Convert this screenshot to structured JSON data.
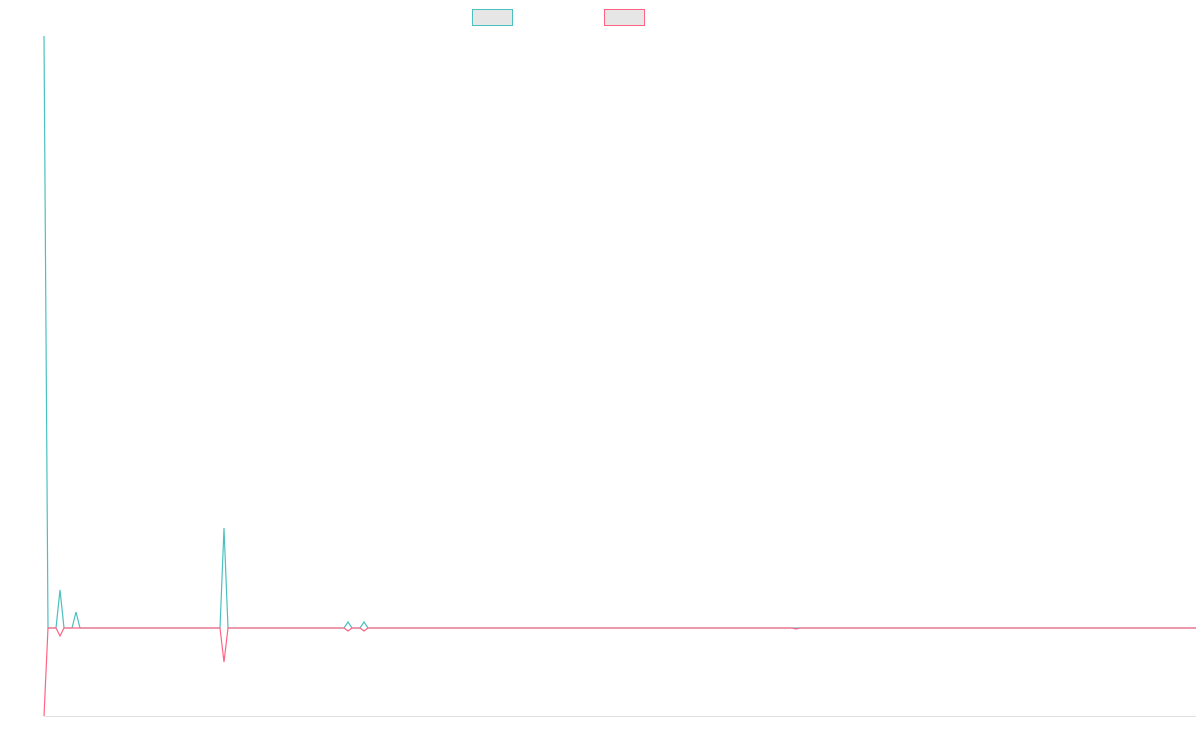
{
  "chart_data": {
    "type": "line",
    "x": [
      0,
      4,
      12,
      16,
      20,
      28,
      32,
      36,
      176,
      180,
      184,
      300,
      304,
      308,
      316,
      320,
      324,
      748,
      752,
      756,
      1152
    ],
    "xlim": [
      0,
      1152
    ],
    "ylim": [
      -88,
      592
    ],
    "series": [
      {
        "color": "#4bc0c0",
        "values": [
          592,
          0,
          0,
          38,
          0,
          0,
          16,
          0,
          0,
          100,
          0,
          0,
          6,
          0,
          0,
          6,
          0,
          0,
          0,
          0,
          0
        ]
      },
      {
        "color": "#ff6384",
        "values": [
          -88,
          0,
          0,
          -8,
          0,
          0,
          0,
          0,
          0,
          -34,
          0,
          0,
          -3,
          0,
          0,
          -3,
          0,
          0,
          -1,
          0,
          0
        ]
      }
    ]
  }
}
